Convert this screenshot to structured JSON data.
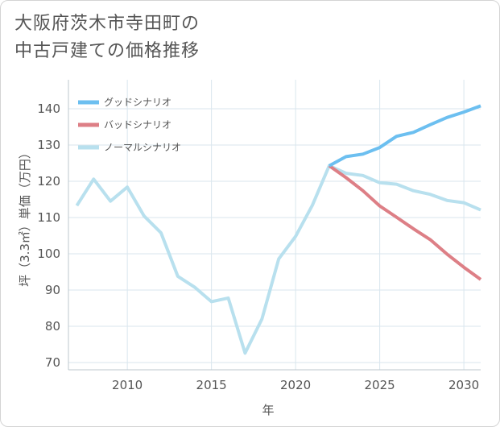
{
  "title": {
    "line1": "大阪府茨木市寺田町の",
    "line2": "中古戸建ての価格推移"
  },
  "chart_data": {
    "type": "line",
    "xlabel": "年",
    "ylabel": "坪（3.3㎡）単価（万円）",
    "xlim": [
      2006.5,
      2031
    ],
    "ylim": [
      68,
      148
    ],
    "xticks": [
      2010,
      2015,
      2020,
      2025,
      2030
    ],
    "yticks": [
      70,
      80,
      90,
      100,
      110,
      120,
      130,
      140
    ],
    "grid": true,
    "legend_position": "top-left",
    "series": [
      {
        "name": "グッドシナリオ",
        "color": "#6cbff0",
        "x": [
          2022,
          2023,
          2024,
          2025,
          2026,
          2027,
          2028,
          2029,
          2030,
          2031
        ],
        "values": [
          124.3,
          126.8,
          127.5,
          129.3,
          132.4,
          133.5,
          135.6,
          137.6,
          139.1,
          140.8
        ]
      },
      {
        "name": "バッドシナリオ",
        "color": "#dd7f86",
        "x": [
          2022,
          2023,
          2024,
          2025,
          2026,
          2027,
          2028,
          2029,
          2030,
          2031
        ],
        "values": [
          124.3,
          121.0,
          117.4,
          113.2,
          110.1,
          106.9,
          103.9,
          99.9,
          96.3,
          92.9
        ]
      },
      {
        "name": "ノーマルシナリオ",
        "color": "#b8e0ee",
        "x": [
          2007,
          2008,
          2009,
          2010,
          2011,
          2012,
          2013,
          2014,
          2015,
          2016,
          2017,
          2018,
          2019,
          2020,
          2021,
          2022,
          2023,
          2024,
          2025,
          2026,
          2027,
          2028,
          2029,
          2030,
          2031
        ],
        "values": [
          113.3,
          120.6,
          114.5,
          118.4,
          110.4,
          105.8,
          93.8,
          90.8,
          86.8,
          87.8,
          72.6,
          82.0,
          98.6,
          104.8,
          113.4,
          124.3,
          122.2,
          121.6,
          119.6,
          119.2,
          117.4,
          116.4,
          114.7,
          114.1,
          112.1
        ]
      }
    ]
  }
}
